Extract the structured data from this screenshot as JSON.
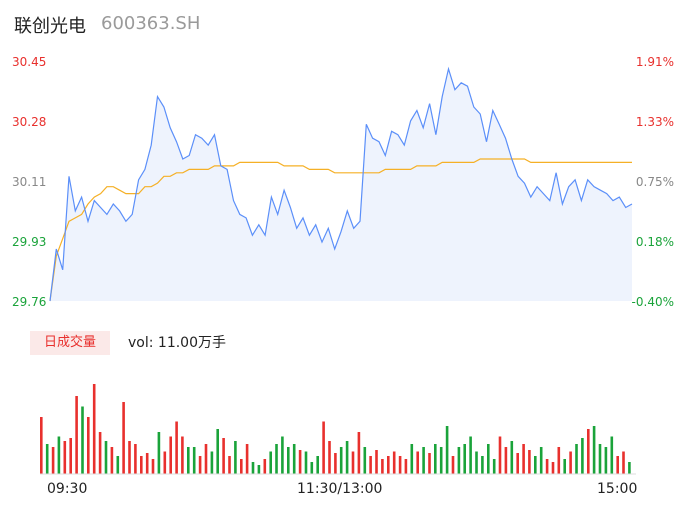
{
  "header": {
    "name": "联创光电",
    "code": "600363.SH"
  },
  "chart_data": {
    "type": "line",
    "price_axis": {
      "labels": [
        "30.45",
        "30.28",
        "30.11",
        "29.93",
        "29.76"
      ],
      "ylim": [
        29.76,
        30.45
      ]
    },
    "pct_axis": {
      "labels": [
        "1.91%",
        "1.33%",
        "0.75%",
        "0.18%",
        "-0.40%"
      ]
    },
    "x_labels": [
      "09:30",
      "11:30/13:00",
      "15:00"
    ],
    "colors": {
      "up": "#e8302d",
      "down": "#1aa33a",
      "price_line": "#5b8ff9",
      "avg_line": "#f5b026",
      "area": "#eef3fd"
    },
    "series": [
      {
        "values": [
          29.76,
          29.91,
          29.85,
          30.12,
          30.02,
          30.06,
          29.99,
          30.05,
          30.03,
          30.01,
          30.04,
          30.02,
          29.99,
          30.01,
          30.11,
          30.14,
          30.21,
          30.35,
          30.32,
          30.26,
          30.22,
          30.17,
          30.18,
          30.24,
          30.23,
          30.21,
          30.24,
          30.15,
          30.14,
          30.05,
          30.01,
          30.0,
          29.95,
          29.98,
          29.95,
          30.06,
          30.01,
          30.08,
          30.03,
          29.97,
          30.0,
          29.95,
          29.98,
          29.93,
          29.97,
          29.91,
          29.96,
          30.02,
          29.97,
          29.99,
          30.27,
          30.23,
          30.22,
          30.18,
          30.25,
          30.24,
          30.21,
          30.28,
          30.31,
          30.26,
          30.33,
          30.24,
          30.35,
          30.43,
          30.37,
          30.39,
          30.38,
          30.32,
          30.3,
          30.22,
          30.31,
          30.27,
          30.23,
          30.17,
          30.12,
          30.1,
          30.06,
          30.09,
          30.07,
          30.05,
          30.13,
          30.04,
          30.09,
          30.11,
          30.05,
          30.11,
          30.09,
          30.08,
          30.07,
          30.05,
          30.06,
          30.03,
          30.04
        ]
      },
      {
        "values": [
          29.76,
          29.89,
          29.94,
          29.99,
          30.0,
          30.01,
          30.04,
          30.06,
          30.07,
          30.09,
          30.09,
          30.08,
          30.07,
          30.07,
          30.07,
          30.09,
          30.09,
          30.1,
          30.12,
          30.12,
          30.13,
          30.13,
          30.14,
          30.14,
          30.14,
          30.14,
          30.15,
          30.15,
          30.15,
          30.15,
          30.16,
          30.16,
          30.16,
          30.16,
          30.16,
          30.16,
          30.16,
          30.15,
          30.15,
          30.15,
          30.15,
          30.14,
          30.14,
          30.14,
          30.14,
          30.13,
          30.13,
          30.13,
          30.13,
          30.13,
          30.13,
          30.13,
          30.13,
          30.14,
          30.14,
          30.14,
          30.14,
          30.14,
          30.15,
          30.15,
          30.15,
          30.15,
          30.16,
          30.16,
          30.16,
          30.16,
          30.16,
          30.16,
          30.17,
          30.17,
          30.17,
          30.17,
          30.17,
          30.17,
          30.17,
          30.17,
          30.16,
          30.16,
          30.16,
          30.16,
          30.16,
          30.16,
          30.16,
          30.16,
          30.16,
          30.16,
          30.16,
          30.16,
          30.16,
          30.16,
          30.16,
          30.16,
          30.16
        ]
      }
    ],
    "volume": {
      "label": "日成交量",
      "summary": "vol: 11.00万手",
      "bars": [
        {
          "v": 38,
          "c": "up"
        },
        {
          "v": 20,
          "c": "down"
        },
        {
          "v": 18,
          "c": "up"
        },
        {
          "v": 25,
          "c": "down"
        },
        {
          "v": 22,
          "c": "up"
        },
        {
          "v": 24,
          "c": "up"
        },
        {
          "v": 52,
          "c": "up"
        },
        {
          "v": 45,
          "c": "down"
        },
        {
          "v": 38,
          "c": "up"
        },
        {
          "v": 60,
          "c": "up"
        },
        {
          "v": 28,
          "c": "up"
        },
        {
          "v": 22,
          "c": "down"
        },
        {
          "v": 18,
          "c": "up"
        },
        {
          "v": 12,
          "c": "down"
        },
        {
          "v": 48,
          "c": "up"
        },
        {
          "v": 22,
          "c": "up"
        },
        {
          "v": 20,
          "c": "up"
        },
        {
          "v": 12,
          "c": "up"
        },
        {
          "v": 14,
          "c": "up"
        },
        {
          "v": 10,
          "c": "up"
        },
        {
          "v": 28,
          "c": "down"
        },
        {
          "v": 15,
          "c": "up"
        },
        {
          "v": 25,
          "c": "up"
        },
        {
          "v": 35,
          "c": "up"
        },
        {
          "v": 25,
          "c": "up"
        },
        {
          "v": 18,
          "c": "down"
        },
        {
          "v": 18,
          "c": "down"
        },
        {
          "v": 12,
          "c": "up"
        },
        {
          "v": 20,
          "c": "up"
        },
        {
          "v": 15,
          "c": "down"
        },
        {
          "v": 30,
          "c": "down"
        },
        {
          "v": 24,
          "c": "up"
        },
        {
          "v": 12,
          "c": "up"
        },
        {
          "v": 22,
          "c": "down"
        },
        {
          "v": 10,
          "c": "up"
        },
        {
          "v": 20,
          "c": "up"
        },
        {
          "v": 8,
          "c": "down"
        },
        {
          "v": 6,
          "c": "down"
        },
        {
          "v": 10,
          "c": "up"
        },
        {
          "v": 15,
          "c": "down"
        },
        {
          "v": 20,
          "c": "down"
        },
        {
          "v": 25,
          "c": "down"
        },
        {
          "v": 18,
          "c": "down"
        },
        {
          "v": 20,
          "c": "down"
        },
        {
          "v": 16,
          "c": "up"
        },
        {
          "v": 15,
          "c": "down"
        },
        {
          "v": 8,
          "c": "down"
        },
        {
          "v": 12,
          "c": "down"
        },
        {
          "v": 35,
          "c": "up"
        },
        {
          "v": 22,
          "c": "up"
        },
        {
          "v": 14,
          "c": "up"
        },
        {
          "v": 18,
          "c": "down"
        },
        {
          "v": 22,
          "c": "down"
        },
        {
          "v": 15,
          "c": "up"
        },
        {
          "v": 28,
          "c": "up"
        },
        {
          "v": 18,
          "c": "down"
        },
        {
          "v": 12,
          "c": "up"
        },
        {
          "v": 16,
          "c": "up"
        },
        {
          "v": 10,
          "c": "up"
        },
        {
          "v": 12,
          "c": "up"
        },
        {
          "v": 15,
          "c": "up"
        },
        {
          "v": 12,
          "c": "up"
        },
        {
          "v": 10,
          "c": "up"
        },
        {
          "v": 20,
          "c": "down"
        },
        {
          "v": 15,
          "c": "up"
        },
        {
          "v": 18,
          "c": "down"
        },
        {
          "v": 14,
          "c": "up"
        },
        {
          "v": 20,
          "c": "down"
        },
        {
          "v": 18,
          "c": "down"
        },
        {
          "v": 32,
          "c": "down"
        },
        {
          "v": 12,
          "c": "up"
        },
        {
          "v": 18,
          "c": "down"
        },
        {
          "v": 20,
          "c": "down"
        },
        {
          "v": 25,
          "c": "down"
        },
        {
          "v": 15,
          "c": "down"
        },
        {
          "v": 12,
          "c": "down"
        },
        {
          "v": 20,
          "c": "down"
        },
        {
          "v": 10,
          "c": "down"
        },
        {
          "v": 25,
          "c": "up"
        },
        {
          "v": 18,
          "c": "up"
        },
        {
          "v": 22,
          "c": "down"
        },
        {
          "v": 14,
          "c": "up"
        },
        {
          "v": 20,
          "c": "up"
        },
        {
          "v": 16,
          "c": "up"
        },
        {
          "v": 12,
          "c": "down"
        },
        {
          "v": 18,
          "c": "down"
        },
        {
          "v": 10,
          "c": "up"
        },
        {
          "v": 8,
          "c": "up"
        },
        {
          "v": 18,
          "c": "up"
        },
        {
          "v": 10,
          "c": "down"
        },
        {
          "v": 15,
          "c": "up"
        },
        {
          "v": 20,
          "c": "down"
        },
        {
          "v": 24,
          "c": "down"
        },
        {
          "v": 30,
          "c": "up"
        },
        {
          "v": 32,
          "c": "down"
        },
        {
          "v": 20,
          "c": "down"
        },
        {
          "v": 18,
          "c": "down"
        },
        {
          "v": 25,
          "c": "down"
        },
        {
          "v": 12,
          "c": "up"
        },
        {
          "v": 15,
          "c": "up"
        },
        {
          "v": 8,
          "c": "down"
        }
      ]
    }
  }
}
